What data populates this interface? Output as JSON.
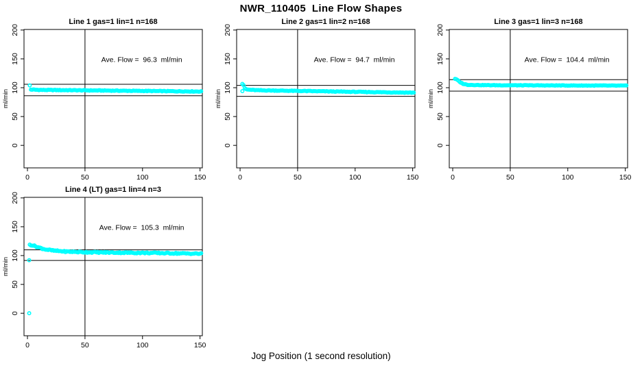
{
  "page_title": "NWR_110405  Line Flow Shapes",
  "x_axis_label": "Jog Position (1 second resolution)",
  "colors": {
    "points": "#00ffff",
    "axis": "#000000",
    "background": "#ffffff"
  },
  "chart_data": [
    {
      "type": "scatter",
      "title": "Line 1 gas=1 lin=1 n=168",
      "ylabel": "ml/min",
      "annotation": "Ave. Flow =  96.3  ml/min",
      "ave_flow_ml_min": 96.3,
      "n": 168,
      "x_ticks": [
        0,
        50,
        100,
        150
      ],
      "y_ticks": [
        0,
        50,
        100,
        150,
        200
      ],
      "x_range": [
        -3,
        152
      ],
      "y_range": [
        -39,
        201
      ],
      "vline_x": 50,
      "ref_lines_y": [
        106,
        86
      ],
      "trend_anchors": [
        [
          3,
          96.8
        ],
        [
          10,
          96.2
        ],
        [
          50,
          95.4
        ],
        [
          100,
          94.4
        ],
        [
          151,
          93.4
        ]
      ],
      "noise_amplitude": 0.55,
      "x_start": 3,
      "x_end": 151,
      "x_step": 1,
      "extra_points": [
        [
          2,
          104
        ]
      ]
    },
    {
      "type": "scatter",
      "title": "Line 2 gas=1 lin=2 n=168",
      "ylabel": "ml/min",
      "annotation": "Ave. Flow =  94.7  ml/min",
      "ave_flow_ml_min": 94.7,
      "n": 168,
      "x_ticks": [
        0,
        50,
        100,
        150
      ],
      "y_ticks": [
        0,
        50,
        100,
        150,
        200
      ],
      "x_range": [
        -3,
        152
      ],
      "y_range": [
        -39,
        201
      ],
      "vline_x": 50,
      "ref_lines_y": [
        104,
        85
      ],
      "trend_anchors": [
        [
          4,
          99
        ],
        [
          6,
          96.8
        ],
        [
          15,
          95.6
        ],
        [
          50,
          94.4
        ],
        [
          100,
          92.8
        ],
        [
          151,
          91.4
        ]
      ],
      "noise_amplitude": 0.55,
      "x_start": 4,
      "x_end": 151,
      "x_step": 1,
      "extra_points": [
        [
          2,
          106.5
        ],
        [
          3,
          104.5
        ],
        [
          2,
          94
        ]
      ]
    },
    {
      "type": "scatter",
      "title": "Line 3 gas=1 lin=3 n=168",
      "ylabel": "ml/min",
      "annotation": "Ave. Flow =  104.4  ml/min",
      "ave_flow_ml_min": 104.4,
      "n": 168,
      "x_ticks": [
        0,
        50,
        100,
        150
      ],
      "y_ticks": [
        0,
        50,
        100,
        150,
        200
      ],
      "x_range": [
        -3,
        152
      ],
      "y_range": [
        -39,
        201
      ],
      "vline_x": 50,
      "ref_lines_y": [
        114,
        94
      ],
      "trend_anchors": [
        [
          2,
          115.5
        ],
        [
          4,
          113.5
        ],
        [
          6,
          110
        ],
        [
          9,
          106.8
        ],
        [
          13,
          105
        ],
        [
          30,
          104.4
        ],
        [
          80,
          104
        ],
        [
          151,
          103.6
        ]
      ],
      "noise_amplitude": 0.45,
      "x_start": 2,
      "x_end": 151,
      "x_step": 1,
      "extra_points": []
    },
    {
      "type": "scatter",
      "title": "Line 4 (LT) gas=1 lin=4 n=3",
      "ylabel": "ml/min",
      "annotation": "Ave. Flow =  105.3  ml/min",
      "ave_flow_ml_min": 105.3,
      "n": 3,
      "x_ticks": [
        0,
        50,
        100,
        150
      ],
      "y_ticks": [
        0,
        50,
        100,
        150,
        200
      ],
      "x_range": [
        -3,
        152
      ],
      "y_range": [
        -39,
        201
      ],
      "vline_x": 50,
      "ref_lines_y": [
        110,
        91.5
      ],
      "trend_anchors": [
        [
          2,
          119
        ],
        [
          5,
          117.5
        ],
        [
          9,
          114.5
        ],
        [
          15,
          111
        ],
        [
          23,
          108.5
        ],
        [
          33,
          107
        ],
        [
          48,
          106
        ],
        [
          75,
          105.2
        ],
        [
          115,
          104.4
        ],
        [
          151,
          103.2
        ]
      ],
      "noise_amplitude": 1.0,
      "x_start": 2,
      "x_end": 151,
      "x_step": 1,
      "extra_points": [
        [
          1.5,
          92
        ],
        [
          1.5,
          0
        ]
      ]
    }
  ]
}
